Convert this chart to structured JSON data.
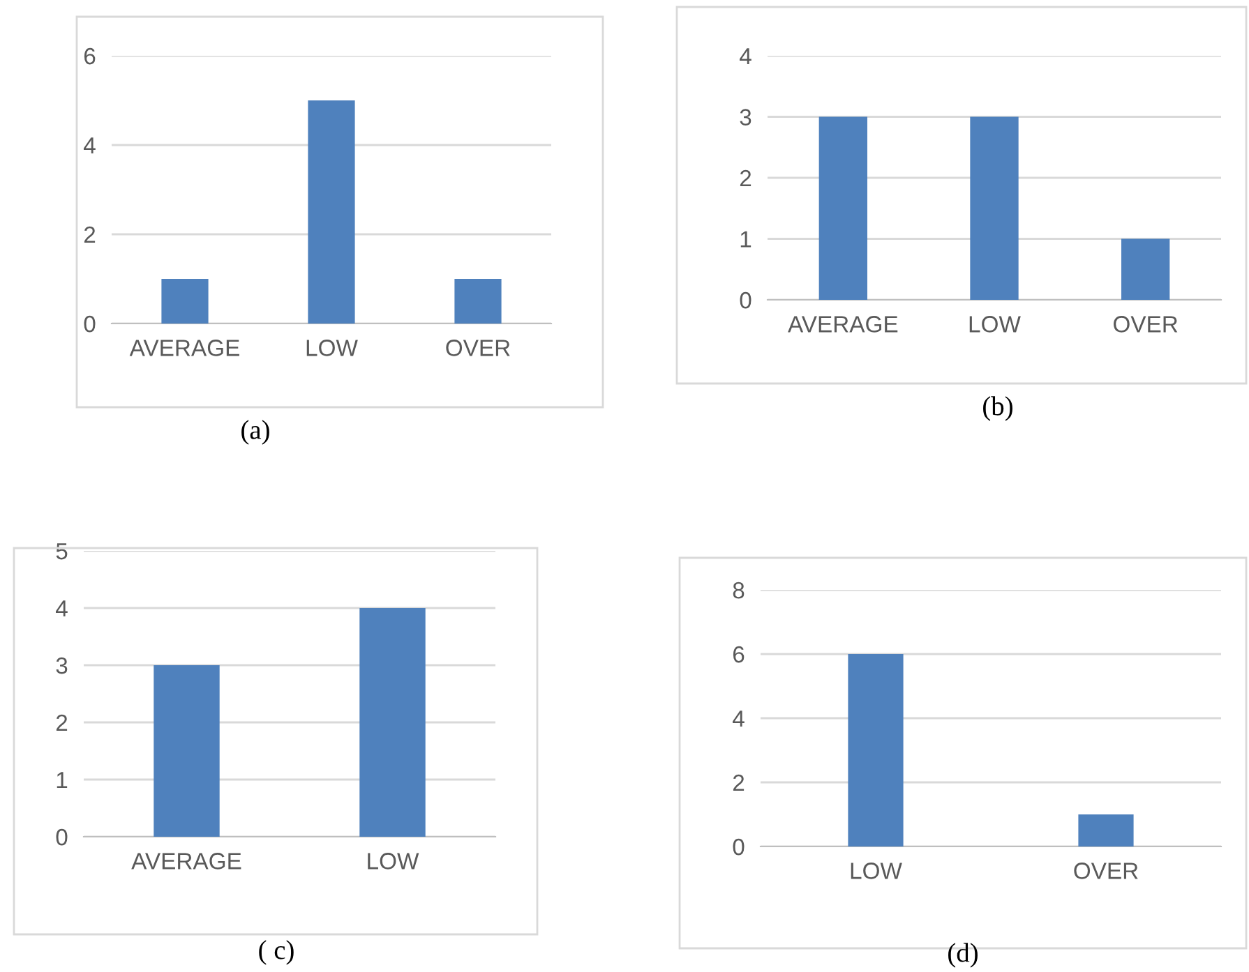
{
  "chart_data": [
    {
      "type": "bar",
      "categories": [
        "AVERAGE",
        "LOW",
        "OVER"
      ],
      "values": [
        1,
        5,
        1
      ],
      "color": "#4f81bd",
      "ylim": [
        0,
        6
      ],
      "yticks": [
        0,
        2,
        4,
        6
      ],
      "grid": "y",
      "annotations": [
        "(a)"
      ]
    },
    {
      "type": "bar",
      "categories": [
        "AVERAGE",
        "LOW",
        "OVER"
      ],
      "values": [
        3,
        3,
        1
      ],
      "color": "#4f81bd",
      "ylim": [
        0,
        4
      ],
      "yticks": [
        0,
        1,
        2,
        3,
        4
      ],
      "grid": "y",
      "annotations": [
        "(b)"
      ]
    },
    {
      "type": "bar",
      "categories": [
        "AVERAGE",
        "LOW"
      ],
      "values": [
        3,
        4
      ],
      "color": "#4f81bd",
      "ylim": [
        0,
        5
      ],
      "yticks": [
        0,
        1,
        2,
        3,
        4,
        5
      ],
      "grid": "y",
      "annotations": [
        "( c)"
      ]
    },
    {
      "type": "bar",
      "categories": [
        "LOW",
        "OVER"
      ],
      "values": [
        6,
        1
      ],
      "color": "#4f81bd",
      "ylim": [
        0,
        8
      ],
      "yticks": [
        0,
        2,
        4,
        6,
        8
      ],
      "grid": "y",
      "annotations": [
        "(d)"
      ]
    }
  ]
}
